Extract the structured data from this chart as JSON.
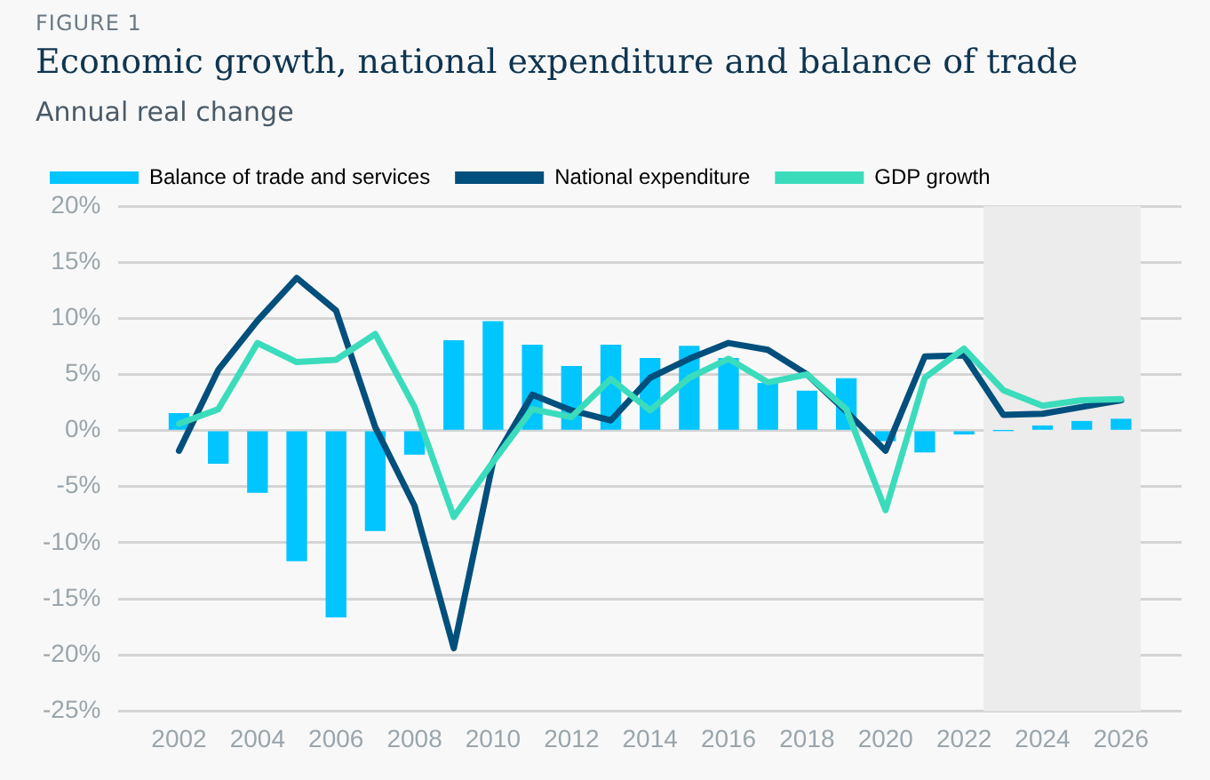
{
  "chart_data": {
    "type": "bar",
    "title": "Economic growth, national expenditure and balance of trade",
    "subtitle": "Annual real change",
    "annotations": [
      "FIGURE 1"
    ],
    "x": [
      2002,
      2003,
      2004,
      2005,
      2006,
      2007,
      2008,
      2009,
      2010,
      2011,
      2012,
      2013,
      2014,
      2015,
      2016,
      2017,
      2018,
      2019,
      2020,
      2021,
      2022,
      2023,
      2024,
      2025,
      2026
    ],
    "series": [
      {
        "name": "Balance of trade and services",
        "color": "#00c5ff",
        "values": [
          1.5,
          -2.9,
          -5.5,
          -11.6,
          -16.6,
          -8.9,
          -2.1,
          8.0,
          9.7,
          7.6,
          5.7,
          7.6,
          6.4,
          7.5,
          6.4,
          4.2,
          3.5,
          4.6,
          -0.9,
          -1.9,
          -0.3,
          0,
          0.4,
          0.8,
          1.0
        ]
      },
      {
        "name": "National expenditure",
        "type": "line",
        "color": "#004f7c",
        "values": [
          -1.8,
          5.4,
          9.8,
          13.6,
          10.7,
          0.3,
          -6.7,
          -19.4,
          -2.8,
          3.2,
          1.8,
          0.9,
          4.7,
          6.4,
          7.8,
          7.2,
          5.0,
          1.7,
          -1.8,
          6.6,
          6.7,
          1.4,
          1.5,
          2.1,
          2.7
        ]
      },
      {
        "name": "GDP growth",
        "type": "line",
        "color": "#3bdcbc",
        "values": [
          0.6,
          1.9,
          7.8,
          6.1,
          6.3,
          8.6,
          2.1,
          -7.7,
          -2.8,
          1.9,
          1.2,
          4.6,
          1.8,
          4.7,
          6.4,
          4.3,
          5.0,
          1.9,
          -7.1,
          4.7,
          7.3,
          3.6,
          2.2,
          2.7,
          2.8
        ]
      }
    ],
    "xlim": [
      2001.5,
      2026.5
    ],
    "xticks": [
      2002,
      2004,
      2006,
      2008,
      2010,
      2012,
      2014,
      2016,
      2018,
      2020,
      2022,
      2024,
      2026
    ],
    "ylim": [
      -25,
      20
    ],
    "yticks": [
      {
        "value": -25,
        "label": "-25%"
      },
      {
        "value": -20,
        "label": "-20%"
      },
      {
        "value": -15,
        "label": "-15%"
      },
      {
        "value": -10,
        "label": "-10%"
      },
      {
        "value": -5,
        "label": "-5%"
      },
      {
        "value": 0,
        "label": "0%"
      },
      {
        "value": 5,
        "label": "5%"
      },
      {
        "value": 10,
        "label": "10%"
      },
      {
        "value": 15,
        "label": "15%"
      },
      {
        "value": 20,
        "label": "20%"
      }
    ],
    "bands": [
      {
        "axis": "x",
        "from": 2022.5,
        "to": 2026.5,
        "color": "#ececec"
      }
    ],
    "grid": "y",
    "legend": "top left",
    "line_style": "solid",
    "marker": "none"
  }
}
